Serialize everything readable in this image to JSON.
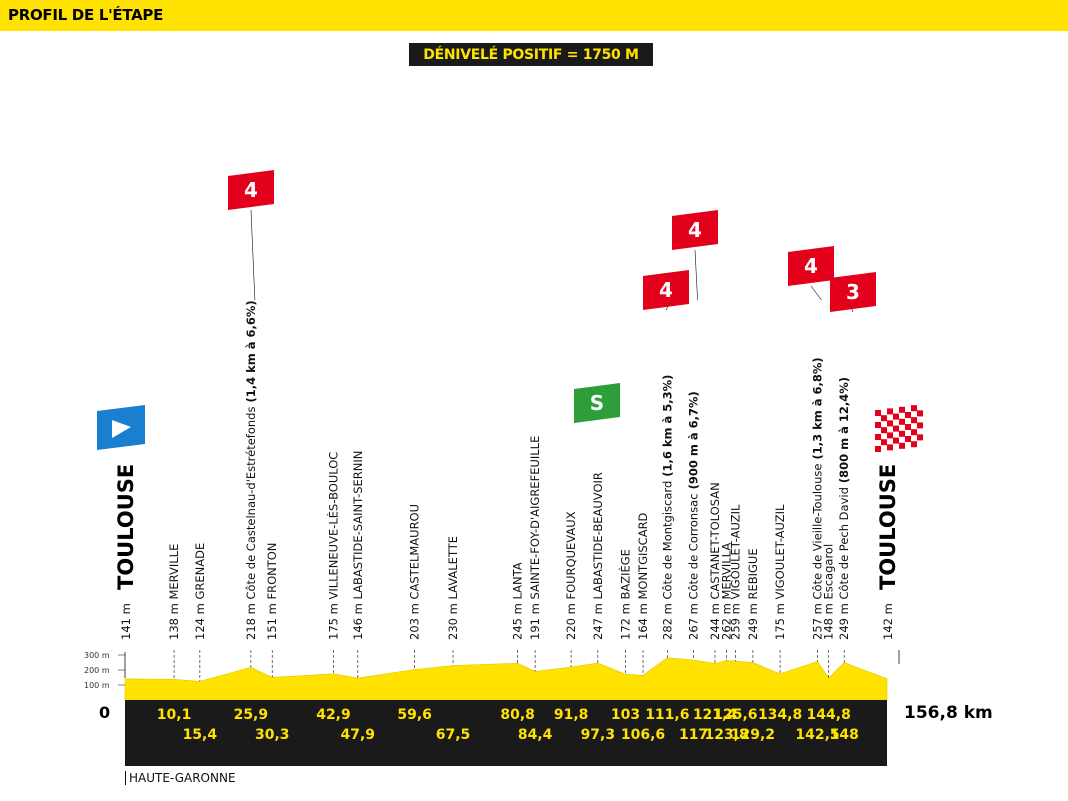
{
  "header": {
    "title": "PROFIL DE L'ÉTAPE"
  },
  "elevation_gain": "DÉNIVELÉ POSITIF = 1750 M",
  "start_km": "0",
  "total_distance": "156,8 km",
  "region": "HAUTE-GARONNE",
  "scale_labels": [
    "300 m",
    "200 m",
    "100 m"
  ],
  "start": {
    "alt": "141 m",
    "name": "TOULOUSE",
    "icon": "start-flag-icon",
    "color": "#1a7fd0"
  },
  "finish": {
    "alt": "142 m",
    "name": "TOULOUSE",
    "icon": "finish-checkered-flag-icon",
    "color": "#e3001b"
  },
  "waypoints": [
    {
      "alt": "138 m",
      "name": "MERVILLE",
      "km": "10,1"
    },
    {
      "alt": "124 m",
      "name": "GRENADE",
      "km": "15,4"
    },
    {
      "alt": "218 m",
      "name": "Côte de Castelnau-d'Estrétefonds",
      "detail": "(1,4 km à 6,6%)",
      "km": "25,9",
      "climb_cat": "4"
    },
    {
      "alt": "151 m",
      "name": "FRONTON",
      "km": "30,3"
    },
    {
      "alt": "175 m",
      "name": "VILLENEUVE-LÈS-BOULOC",
      "km": "42,9"
    },
    {
      "alt": "146 m",
      "name": "LABASTIDE-SAINT-SERNIN",
      "km": "47,9"
    },
    {
      "alt": "203 m",
      "name": "CASTELMAUROU",
      "km": "59,6"
    },
    {
      "alt": "230 m",
      "name": "LAVALETTE",
      "km": "67,5"
    },
    {
      "alt": "245 m",
      "name": "LANTA",
      "km": "80,8"
    },
    {
      "alt": "191 m",
      "name": "SAINTE-FOY-D'AIGREFEUILLE",
      "km": "84,4"
    },
    {
      "alt": "220 m",
      "name": "FOURQUEVAUX",
      "km": "91,8"
    },
    {
      "alt": "247 m",
      "name": "LABASTIDE-BEAUVOIR",
      "km": "97,3",
      "sprint": "S"
    },
    {
      "alt": "172 m",
      "name": "BAZIÈGE",
      "km": "103"
    },
    {
      "alt": "164 m",
      "name": "MONTGISCARD",
      "km": "106,6"
    },
    {
      "alt": "282 m",
      "name": "Côte de Montgiscard",
      "detail": "(1,6 km à 5,3%)",
      "km": "111,6",
      "climb_cat": "4"
    },
    {
      "alt": "267 m",
      "name": "Côte de Corronsac",
      "detail": "(900 m à 6,7%)",
      "km": "117",
      "climb_cat": "4"
    },
    {
      "alt": "244 m",
      "name": "CASTANET-TOLOSAN",
      "km": "121,4"
    },
    {
      "alt": "262 m",
      "name": "MERVILLA",
      "km": "123,8"
    },
    {
      "alt": "259 m",
      "name": "VIGOULET-AUZIL",
      "km": "125,6"
    },
    {
      "alt": "249 m",
      "name": "REBIGUE",
      "km": "129,2"
    },
    {
      "alt": "175 m",
      "name": "VIGOULET-AUZIL",
      "km": "134,8"
    },
    {
      "alt": "257 m",
      "name": "Côte de Vieille-Toulouse",
      "detail": "(1,3 km à 6,8%)",
      "km": "142,5",
      "climb_cat": "4"
    },
    {
      "alt": "148 m",
      "name": "Escagarol",
      "km": "144,8"
    },
    {
      "alt": "249 m",
      "name": "Côte de Pech David",
      "detail": "(800 m à 12,4%)",
      "km": "148",
      "climb_cat": "3"
    }
  ],
  "colors": {
    "yellow": "#ffe200",
    "band": "#1a1a1a",
    "climb_flag": "#e3001b",
    "sprint_flag": "#2e9e3a",
    "start_flag": "#1a7fd0"
  }
}
